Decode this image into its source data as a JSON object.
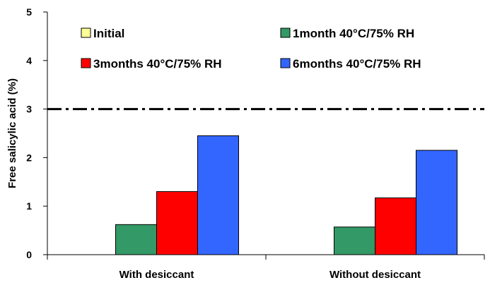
{
  "chart_data": {
    "type": "bar",
    "title": "",
    "xlabel": "",
    "ylabel": "Free salicylic acid (%)",
    "ylim": [
      0,
      5
    ],
    "yticks": [
      0,
      1,
      2,
      3,
      4,
      5
    ],
    "grid": false,
    "legend_position": "top",
    "categories": [
      "With desiccant",
      "Without desiccant"
    ],
    "series": [
      {
        "name": "Initial",
        "color": "#ffff99",
        "values": [
          0,
          0
        ]
      },
      {
        "name": "1month 40°C/75% RH",
        "color": "#339966",
        "values": [
          0.62,
          0.57
        ]
      },
      {
        "name": "3months 40°C/75% RH",
        "color": "#ff0000",
        "values": [
          1.3,
          1.17
        ]
      },
      {
        "name": "6months 40°C/75% RH",
        "color": "#3366ff",
        "values": [
          2.45,
          2.15
        ]
      }
    ],
    "reference_line": {
      "value": 3.0,
      "style": "dash-dot",
      "color": "#000000"
    }
  }
}
